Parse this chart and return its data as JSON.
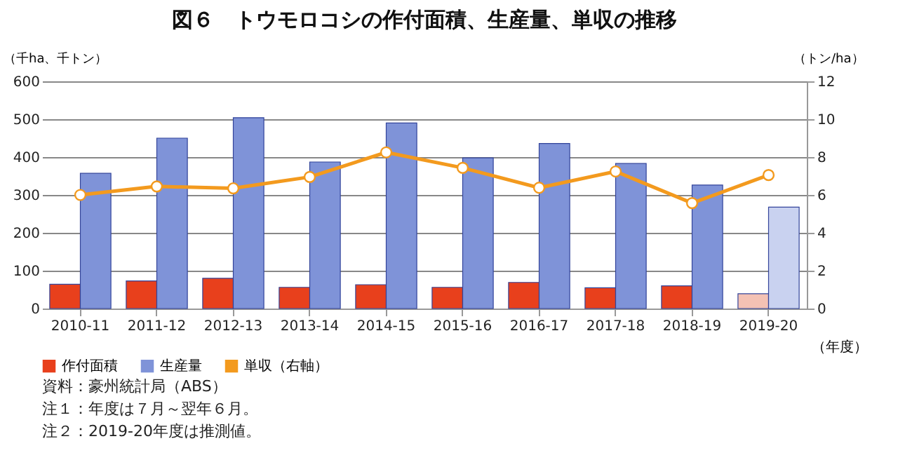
{
  "chart_data": {
    "type": "bar",
    "title": "図６　トウモロコシの作付面積、生産量、単収の推移",
    "xlabel": "（年度）",
    "ylabel": "（千ha、千トン）",
    "y2label": "（トン/ha）",
    "categories": [
      "2010-11",
      "2011-12",
      "2012-13",
      "2013-14",
      "2014-15",
      "2015-16",
      "2016-17",
      "2017-18",
      "2018-19",
      "2019-20"
    ],
    "series": [
      {
        "name": "作付面積",
        "color": "#e8401c",
        "colors": [
          "#e8401c",
          "#e8401c",
          "#e8401c",
          "#e8401c",
          "#e8401c",
          "#e8401c",
          "#e8401c",
          "#e8401c",
          "#e8401c",
          "#f4c2b4"
        ],
        "values": [
          64,
          73,
          80,
          56,
          63,
          56,
          69,
          55,
          60,
          39
        ]
      },
      {
        "name": "生産量",
        "color": "#7f93d8",
        "colors": [
          "#7f93d8",
          "#7f93d8",
          "#7f93d8",
          "#7f93d8",
          "#7f93d8",
          "#7f93d8",
          "#7f93d8",
          "#7f93d8",
          "#7f93d8",
          "#c9d2f0"
        ],
        "values": [
          357,
          450,
          504,
          387,
          490,
          398,
          436,
          383,
          326,
          268
        ]
      },
      {
        "name": "単収（右軸）",
        "type": "line",
        "axis": "y2",
        "color": "#f39a1e",
        "values": [
          6.0,
          6.45,
          6.35,
          6.95,
          8.25,
          7.43,
          6.38,
          7.24,
          5.57,
          7.05
        ]
      }
    ],
    "ylim": [
      0,
      600
    ],
    "yticks": [
      0,
      100,
      200,
      300,
      400,
      500,
      600
    ],
    "y2lim": [
      0,
      12
    ],
    "y2ticks": [
      0,
      2,
      4,
      6,
      8,
      10,
      12
    ],
    "grid": "y",
    "legend": "bottom",
    "marker": "circle",
    "line_style": "solid",
    "annotations": [
      "資料：豪州統計局（ABS）",
      "注１：年度は７月～翌年６月。",
      "注２：2019-20年度は推測値。"
    ]
  }
}
